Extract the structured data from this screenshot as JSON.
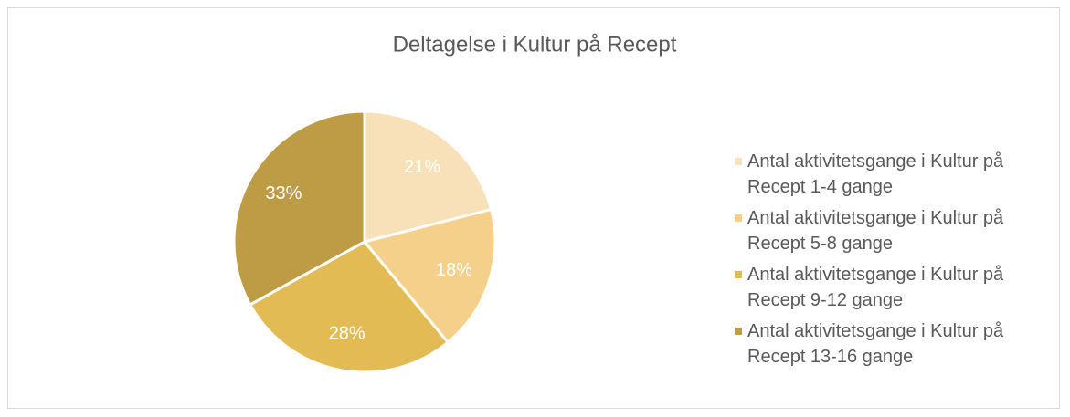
{
  "chart_data": {
    "type": "pie",
    "title": "Deltagelse i Kultur på Recept",
    "categories": [
      "Antal aktivitetsgange i Kultur på Recept 1-4 gange",
      "Antal aktivitetsgange i Kultur på Recept 5-8 gange",
      "Antal aktivitetsgange i Kultur på Recept 9-12 gange",
      "Antal aktivitetsgange i Kultur på Recept 13-16 gange"
    ],
    "values": [
      21,
      18,
      28,
      33
    ],
    "value_labels": [
      "21%",
      "18%",
      "28%",
      "33%"
    ],
    "colors": [
      "#f8e1b8",
      "#f5d08a",
      "#e2bb55",
      "#be9b45"
    ],
    "legend": "right"
  }
}
